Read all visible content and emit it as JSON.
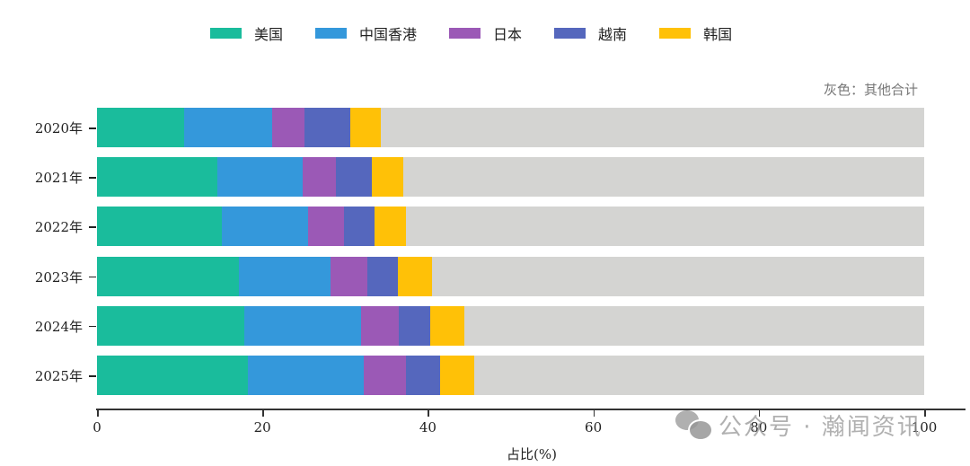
{
  "chart_data": {
    "type": "bar",
    "orientation": "horizontal",
    "stacked": true,
    "title": "",
    "xlabel": "占比(%)",
    "ylabel": "",
    "xlim": [
      0,
      100
    ],
    "xticks": [
      "0",
      "20",
      "40",
      "60",
      "80",
      "100"
    ],
    "categories": [
      "2020年",
      "2021年",
      "2022年",
      "2023年",
      "2024年",
      "2025年"
    ],
    "series": [
      {
        "name": "美国",
        "color": "#1abc9c",
        "values": [
          10.5,
          14.6,
          15.1,
          17.2,
          17.8,
          18.2
        ]
      },
      {
        "name": "中国香港",
        "color": "#3498db",
        "values": [
          10.7,
          10.3,
          10.4,
          11.0,
          14.1,
          14.1
        ]
      },
      {
        "name": "日本",
        "color": "#9b59b6",
        "values": [
          3.9,
          4.0,
          4.4,
          4.5,
          4.6,
          5.0
        ]
      },
      {
        "name": "越南",
        "color": "#5567bd",
        "values": [
          5.5,
          4.3,
          3.7,
          3.7,
          3.8,
          4.2
        ]
      },
      {
        "name": "韩国",
        "color": "#ffc107",
        "values": [
          3.7,
          3.8,
          3.8,
          4.1,
          4.1,
          4.1
        ]
      },
      {
        "name": "其他合计",
        "color": "#d4d4d2",
        "values": [
          65.7,
          63.0,
          62.6,
          59.5,
          55.6,
          54.4
        ]
      }
    ],
    "legend_position": "top",
    "grid": false,
    "annotation": "灰色：其他合计"
  },
  "legend": [
    {
      "label": "美国",
      "color": "#1abc9c"
    },
    {
      "label": "中国香港",
      "color": "#3498db"
    },
    {
      "label": "日本",
      "color": "#9b59b6"
    },
    {
      "label": "越南",
      "color": "#5567bd"
    },
    {
      "label": "韩国",
      "color": "#ffc107"
    }
  ],
  "note": "灰色：其他合计",
  "xaxis": {
    "label": "占比(%)",
    "ticks": [
      "0",
      "20",
      "40",
      "60",
      "80",
      "100"
    ]
  },
  "watermark": {
    "text": "公众号 · 瀚闻资讯"
  }
}
